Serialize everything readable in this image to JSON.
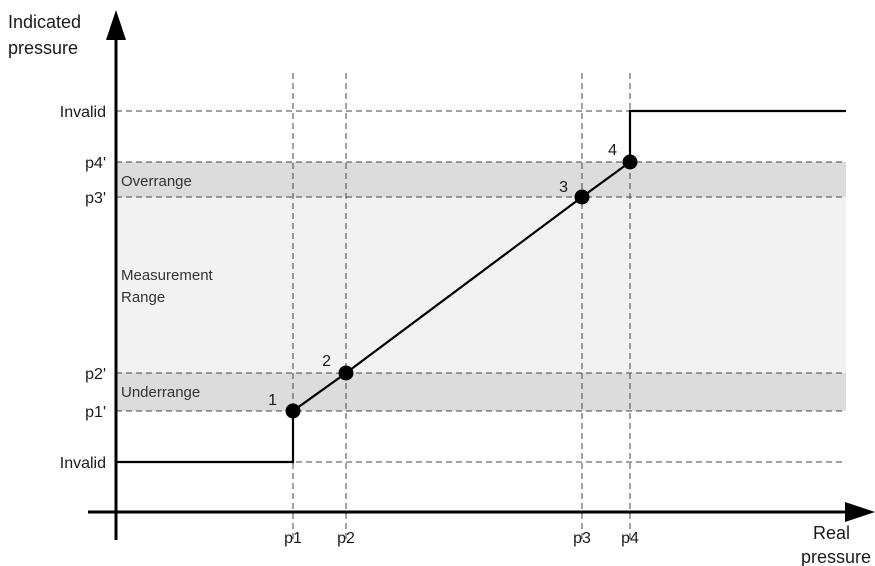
{
  "y_axis_title": [
    "Indicated",
    "pressure"
  ],
  "x_axis_title": [
    "Real",
    "pressure"
  ],
  "y_levels": [
    {
      "label": "Invalid"
    },
    {
      "label": "p4'"
    },
    {
      "label": "p3'"
    },
    {
      "label": "p2'"
    },
    {
      "label": "p1'"
    },
    {
      "label": "Invalid"
    }
  ],
  "x_marks": [
    {
      "label": "p1"
    },
    {
      "label": "p2"
    },
    {
      "label": "p3"
    },
    {
      "label": "p4"
    }
  ],
  "bands": {
    "overrange": "Overrange",
    "measurement": [
      "Measurement",
      "Range"
    ],
    "underrange": "Underrange"
  },
  "points": [
    {
      "label": "1"
    },
    {
      "label": "2"
    },
    {
      "label": "3"
    },
    {
      "label": "4"
    }
  ],
  "colors": {
    "band_dark": "#dcdcdc",
    "band_light": "#f2f2f2",
    "line": "#000000",
    "guide": "#444444"
  }
}
